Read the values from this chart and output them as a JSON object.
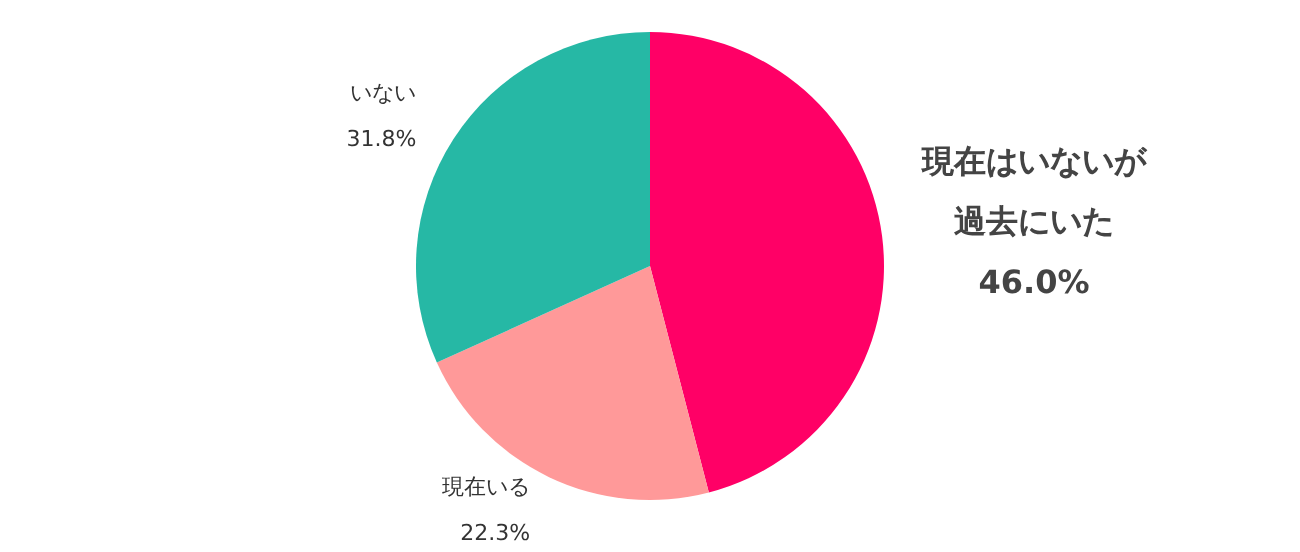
{
  "chart_data": {
    "type": "pie",
    "categories": [
      "現在はいないが過去にいた",
      "現在いる",
      "いない"
    ],
    "values": [
      46.0,
      22.3,
      31.8
    ],
    "colors": [
      "#ff0066",
      "#ff9999",
      "#26b8a5"
    ],
    "value_labels": [
      "46.0%",
      "22.3%",
      "31.8%"
    ],
    "legend": false
  }
}
